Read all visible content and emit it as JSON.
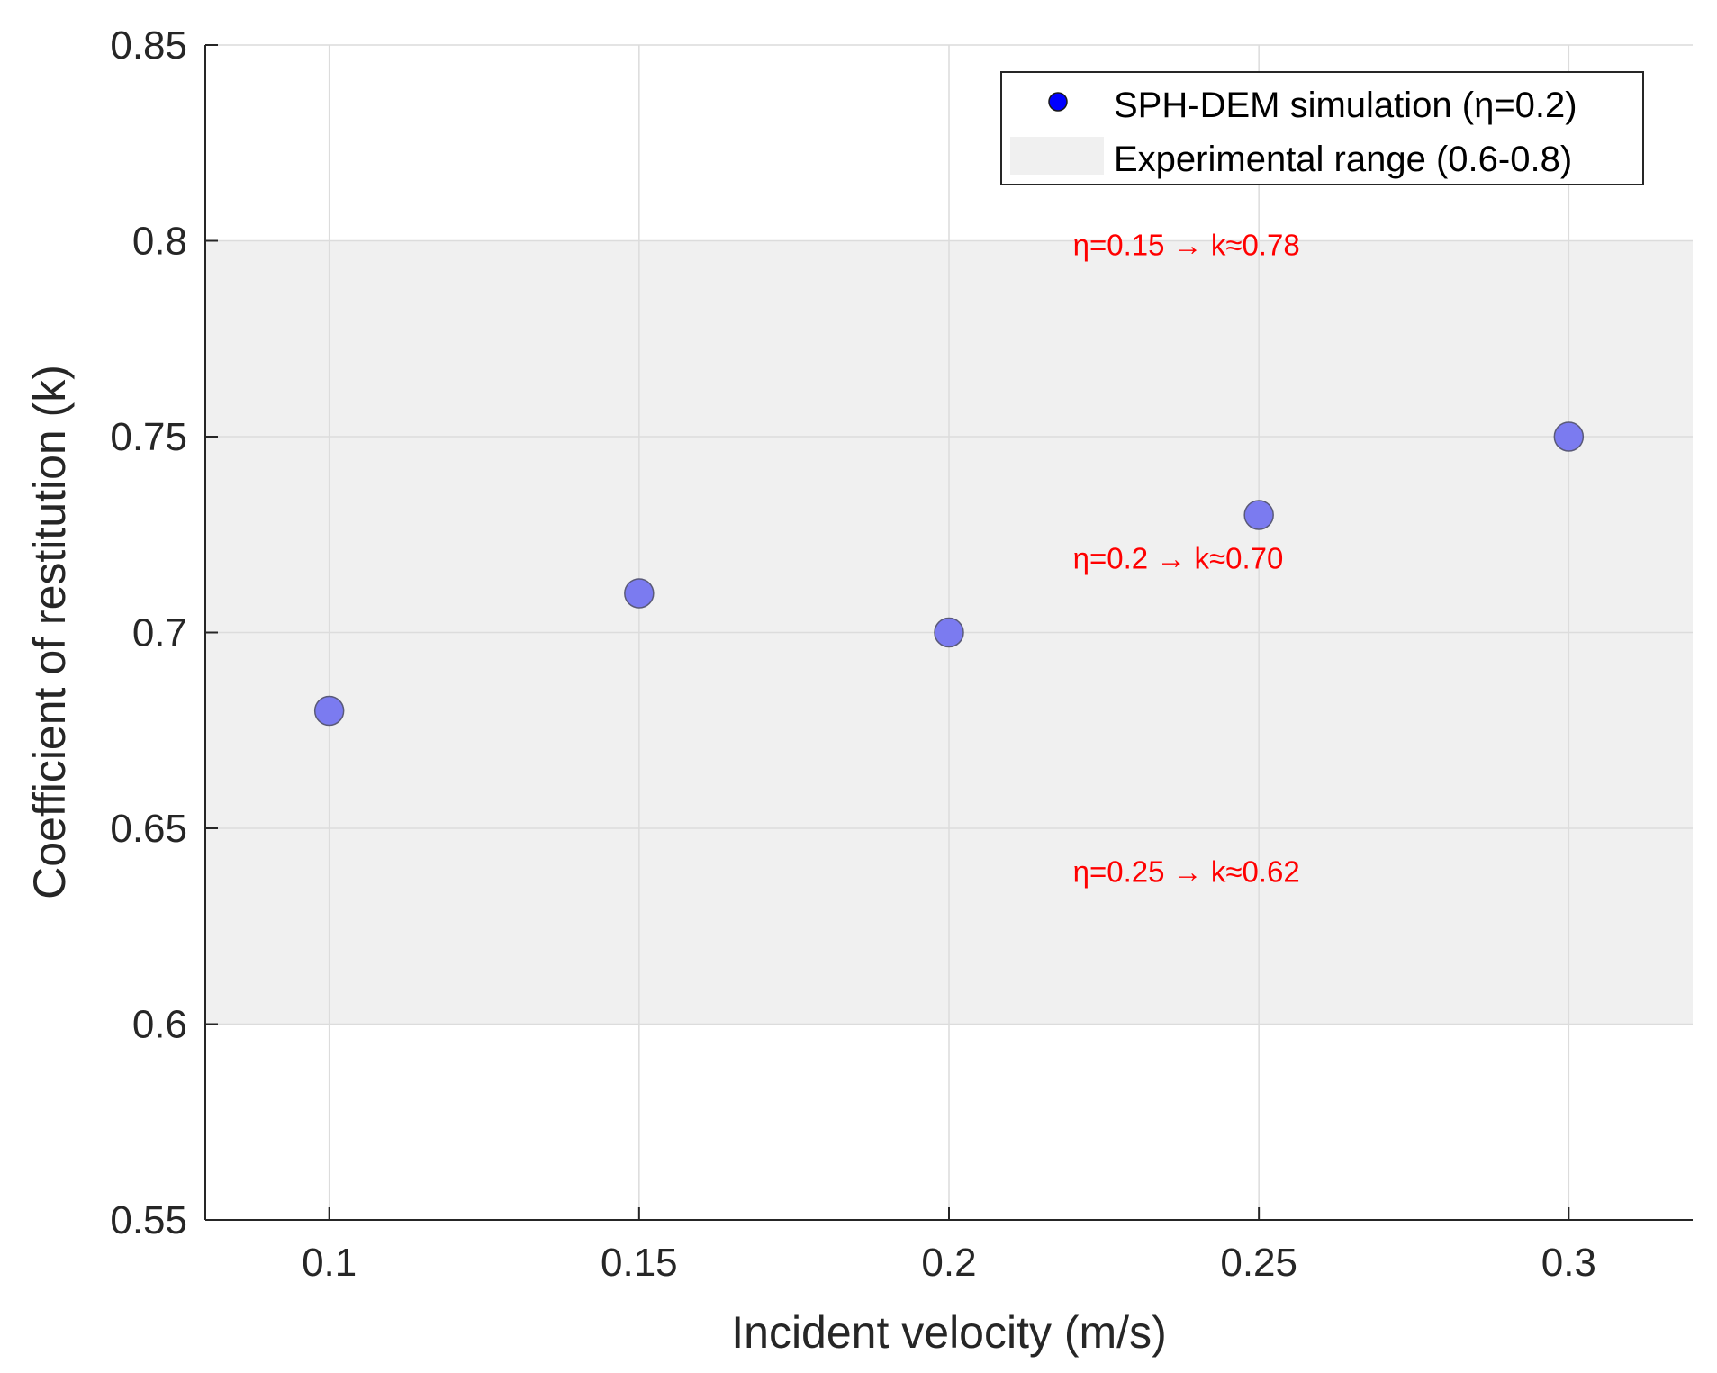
{
  "chart_data": {
    "type": "scatter",
    "title": "",
    "xlabel": "Incident velocity (m/s)",
    "ylabel": "Coefficient of restitution (k)",
    "xlim": [
      0.08,
      0.32
    ],
    "ylim": [
      0.55,
      0.85
    ],
    "grid": true,
    "x_ticks": [
      0.1,
      0.15,
      0.2,
      0.25,
      0.3
    ],
    "x_tick_labels": [
      "0.1",
      "0.15",
      "0.2",
      "0.25",
      "0.3"
    ],
    "y_ticks": [
      0.55,
      0.6,
      0.65,
      0.7,
      0.75,
      0.8,
      0.85
    ],
    "y_tick_labels": [
      "0.55",
      "0.6",
      "0.65",
      "0.7",
      "0.75",
      "0.8",
      "0.85"
    ],
    "series": [
      {
        "name": "SPH-DEM simulation (η=0.2)",
        "x": [
          0.1,
          0.15,
          0.2,
          0.25,
          0.3
        ],
        "y": [
          0.68,
          0.71,
          0.7,
          0.73,
          0.75
        ],
        "marker_color": "#7b7bf0",
        "legend_marker_color": "#0000ff"
      }
    ],
    "bands": [
      {
        "name": "Experimental range (0.6-0.8)",
        "y_range": [
          0.6,
          0.8
        ],
        "color": "#f0f0f0"
      }
    ],
    "annotations": [
      {
        "text": "η=0.15 → k≈0.78",
        "x": 0.22,
        "y": 0.8,
        "color": "#ff0000"
      },
      {
        "text": "η=0.2 → k≈0.70",
        "x": 0.22,
        "y": 0.72,
        "color": "#ff0000"
      },
      {
        "text": "η=0.25 → k≈0.62",
        "x": 0.22,
        "y": 0.64,
        "color": "#ff0000"
      }
    ],
    "legend": {
      "position": "top-right",
      "entries": [
        "SPH-DEM simulation (η=0.2)",
        "Experimental range (0.6-0.8)"
      ]
    }
  }
}
